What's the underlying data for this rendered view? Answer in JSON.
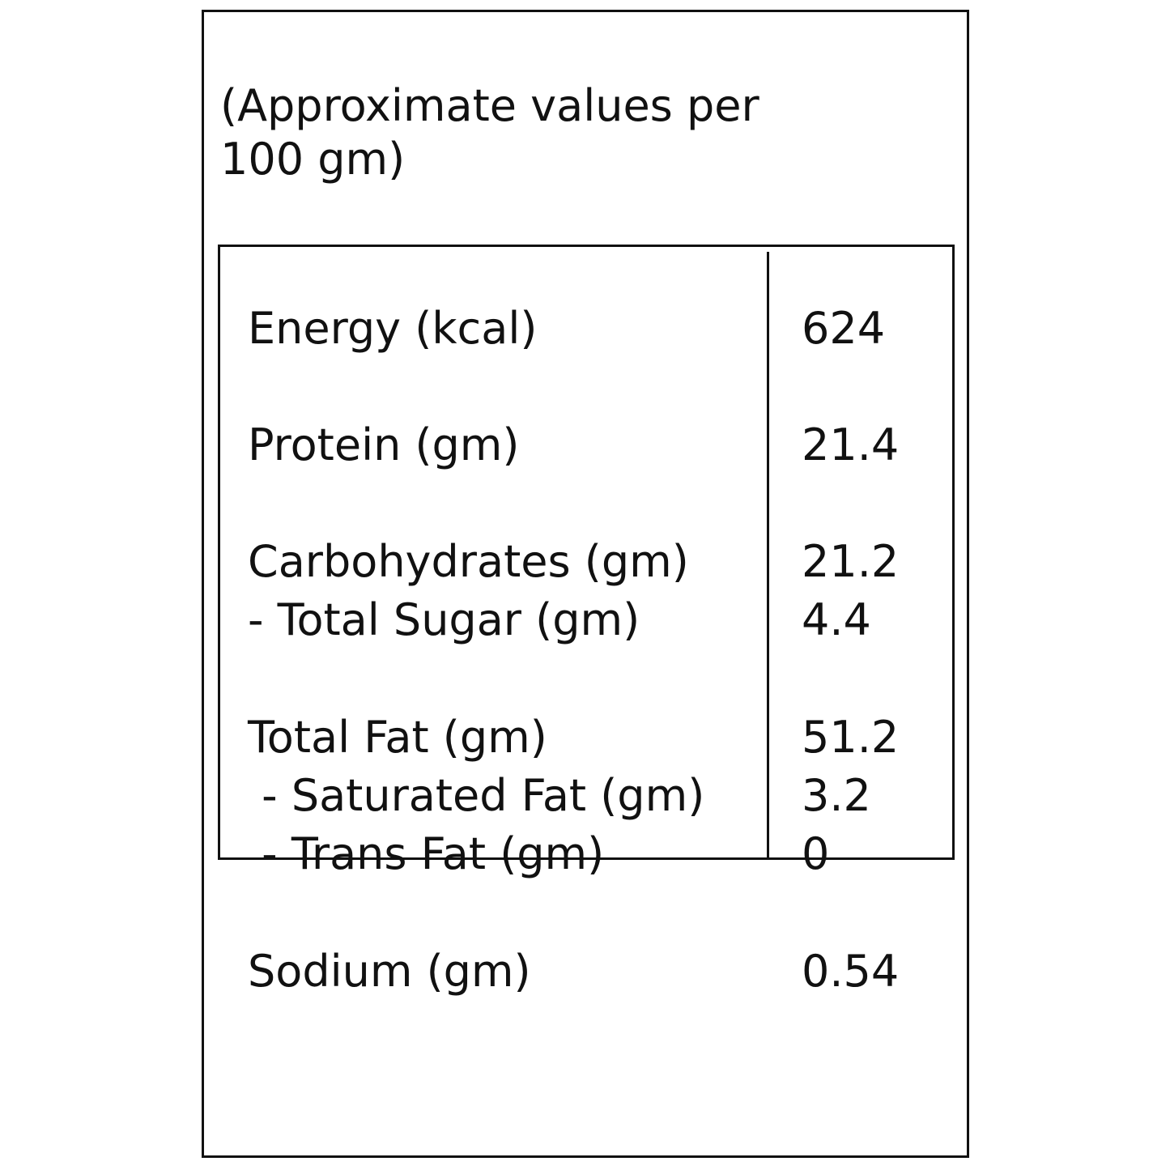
{
  "serving_note": {
    "line1": "(Approximate values per",
    "line2": "100 gm)"
  },
  "nutrients": [
    {
      "label": "Energy (kcal)",
      "value": "624"
    },
    {
      "label": "Protein (gm)",
      "value": "21.4"
    },
    {
      "label": "Carbohydrates (gm)",
      "value": "21.2"
    },
    {
      "label": "- Total Sugar (gm)",
      "value": "4.4"
    },
    {
      "label": "Total Fat (gm)",
      "value": "51.2"
    },
    {
      "label": " - Saturated Fat (gm)",
      "value": "3.2"
    },
    {
      "label": " - Trans Fat (gm)",
      "value": "0"
    },
    {
      "label": "Sodium (gm)",
      "value": "0.54"
    }
  ]
}
